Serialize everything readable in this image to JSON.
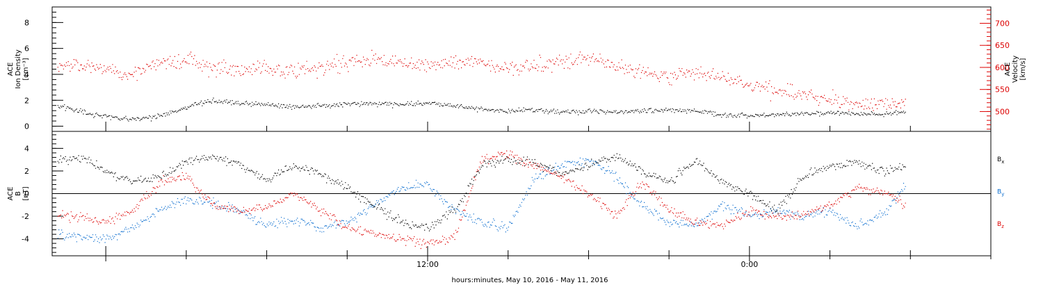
{
  "chart_data": {
    "type": "scatter",
    "xlabel": "hours:minutes, May 10, 2016 - May 11, 2016",
    "x_range_hours": [
      -2.0,
      33.0
    ],
    "x_tick_labels": [
      {
        "hour": 12,
        "label": "12:00"
      },
      {
        "hour": 24,
        "label": "0:00"
      }
    ],
    "panels": [
      {
        "id": "plasma",
        "left_axis": {
          "title_lines": [
            "ACE",
            "Ion Density",
            "[cm⁻³]"
          ],
          "ylim": [
            -0.4,
            9.2
          ],
          "ticks": [
            0,
            2,
            4,
            6,
            8
          ],
          "color": "#000000"
        },
        "right_axis": {
          "title_lines": [
            "ACE",
            "Velocity",
            "[km/s]"
          ],
          "ylim": [
            455,
            737
          ],
          "ticks": [
            500,
            550,
            600,
            650,
            700
          ],
          "color": "#dd0000"
        },
        "series": [
          {
            "axis": "left",
            "color": "#000000",
            "x": [
              -1.8,
              -1.0,
              -0.5,
              0,
              1,
              2,
              3,
              4,
              5,
              6,
              7,
              8,
              9,
              10,
              11,
              12,
              13,
              14,
              15,
              16,
              17,
              18,
              19,
              20,
              21,
              22,
              23,
              24,
              25,
              26,
              27,
              28,
              29,
              29.8
            ],
            "y": [
              1.6,
              1.2,
              0.9,
              0.8,
              0.6,
              0.8,
              1.5,
              2.0,
              1.8,
              1.7,
              1.5,
              1.6,
              1.7,
              1.8,
              1.7,
              1.8,
              1.6,
              1.3,
              1.2,
              1.3,
              1.1,
              1.2,
              1.1,
              1.2,
              1.3,
              1.2,
              0.9,
              0.8,
              0.9,
              1.0,
              1.1,
              1.0,
              0.9,
              1.1
            ]
          },
          {
            "axis": "right",
            "color": "#dd0000",
            "x": [
              -1.8,
              -1.0,
              0,
              1,
              2,
              3,
              4,
              5,
              6,
              7,
              8,
              9,
              10,
              11,
              12,
              13,
              14,
              15,
              16,
              17,
              18,
              19,
              20,
              21,
              22,
              23,
              24,
              25,
              26,
              27,
              28,
              29,
              29.8
            ],
            "y": [
              600,
              605,
              595,
              585,
              610,
              615,
              600,
              595,
              600,
              590,
              600,
              610,
              620,
              610,
              605,
              615,
              610,
              600,
              605,
              610,
              620,
              605,
              590,
              580,
              590,
              580,
              560,
              550,
              540,
              530,
              520,
              515,
              520
            ]
          }
        ]
      },
      {
        "id": "magnetic",
        "left_axis": {
          "title_lines": [
            "ACE",
            "B",
            "[nT]"
          ],
          "ylim": [
            -5.5,
            5.5
          ],
          "ticks": [
            -4,
            -2,
            0,
            2,
            4
          ],
          "color": "#000000"
        },
        "zero_line": true,
        "legend": [
          {
            "base": "B",
            "sub": "x",
            "color": "#000000"
          },
          {
            "base": "B",
            "sub": "y",
            "color": "#0a6dcf"
          },
          {
            "base": "B",
            "sub": "z",
            "color": "#dd0000"
          }
        ],
        "series": [
          {
            "name": "Bx",
            "color": "#000000",
            "x": [
              -1.8,
              -1,
              0,
              1,
              2,
              3,
              4,
              5,
              6,
              7,
              8,
              9,
              10,
              11,
              12,
              13,
              14,
              15,
              16,
              17,
              18,
              19,
              20,
              21,
              22,
              23,
              24,
              25,
              26,
              27,
              28,
              29,
              29.8
            ],
            "y": [
              3.0,
              3.2,
              2.0,
              1.0,
              1.5,
              2.8,
              3.3,
              2.5,
              1.2,
              2.5,
              1.8,
              0.5,
              -1.0,
              -2.5,
              -3.0,
              -1.5,
              2.5,
              3.0,
              2.8,
              1.8,
              2.5,
              3.3,
              2.0,
              1.0,
              3.0,
              1.0,
              0.0,
              -1.5,
              1.5,
              2.5,
              2.8,
              2.0,
              2.5
            ]
          },
          {
            "name": "By",
            "color": "#0a6dcf",
            "x": [
              -1.8,
              -1,
              0,
              1,
              2,
              3,
              4,
              5,
              6,
              7,
              8,
              9,
              10,
              11,
              12,
              13,
              14,
              15,
              16,
              17,
              18,
              19,
              20,
              21,
              22,
              23,
              24,
              25,
              26,
              27,
              28,
              29,
              29.8
            ],
            "y": [
              -3.5,
              -3.8,
              -3.9,
              -3.0,
              -1.5,
              -0.5,
              -0.8,
              -1.5,
              -2.8,
              -2.2,
              -3.0,
              -2.5,
              -1.0,
              0.5,
              0.8,
              -1.5,
              -2.5,
              -3.0,
              1.5,
              2.5,
              3.0,
              1.5,
              -1.0,
              -2.5,
              -2.8,
              -1.0,
              -2.0,
              -1.5,
              -2.0,
              -1.5,
              -3.0,
              -1.8,
              0.8
            ]
          },
          {
            "name": "Bz",
            "color": "#dd0000",
            "x": [
              -1.8,
              -1,
              0,
              1,
              2,
              3,
              4,
              5,
              6,
              7,
              8,
              9,
              10,
              11,
              12,
              13,
              14,
              15,
              16,
              17,
              18,
              19,
              20,
              21,
              22,
              23,
              24,
              25,
              26,
              27,
              28,
              29,
              29.8
            ],
            "y": [
              -1.8,
              -2.0,
              -2.5,
              -1.5,
              1.0,
              1.5,
              -1.0,
              -1.5,
              -1.2,
              0.0,
              -1.5,
              -3.0,
              -3.5,
              -4.0,
              -4.5,
              -3.8,
              3.0,
              3.5,
              2.5,
              1.5,
              0.0,
              -2.0,
              1.0,
              -1.5,
              -2.5,
              -2.8,
              -1.5,
              -2.0,
              -1.8,
              -1.0,
              0.5,
              0.2,
              -1.0
            ]
          }
        ]
      }
    ]
  }
}
